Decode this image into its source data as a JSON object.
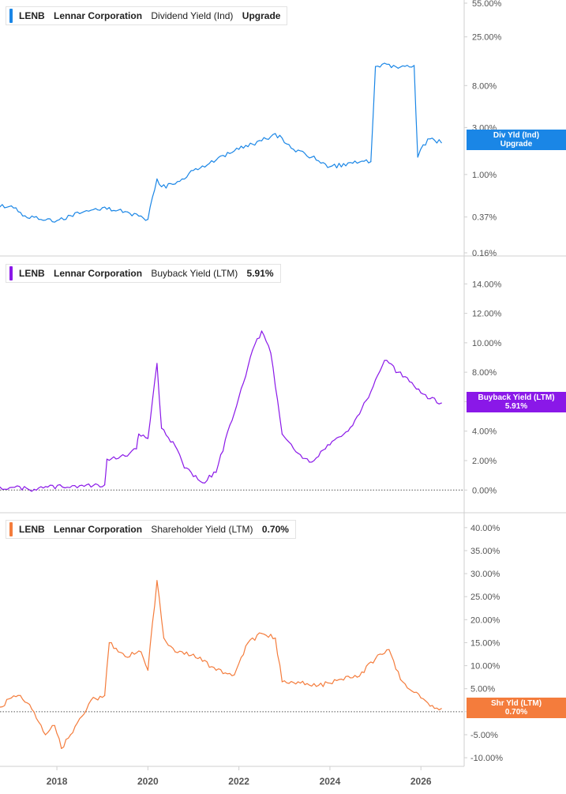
{
  "panels": [
    {
      "ticker": "LENB",
      "company": "Lennar Corporation",
      "metric": "Dividend Yield (Ind)",
      "value": "Upgrade",
      "color": "#1a86e6",
      "tag_line1": "Div Yld (Ind)",
      "tag_line2": "Upgrade"
    },
    {
      "ticker": "LENB",
      "company": "Lennar Corporation",
      "metric": "Buyback Yield (LTM)",
      "value": "5.91%",
      "color": "#8a18e8",
      "tag_line1": "Buyback Yield (LTM)",
      "tag_line2": "5.91%"
    },
    {
      "ticker": "LENB",
      "company": "Lennar Corporation",
      "metric": "Shareholder Yield (LTM)",
      "value": "0.70%",
      "color": "#f47c3c",
      "tag_line1": "Shr Yld (LTM)",
      "tag_line2": "0.70%"
    }
  ],
  "chart_data": [
    {
      "type": "line",
      "title": "LENB Lennar Corporation Dividend Yield (Ind)",
      "scale": "log",
      "ylim": [
        0.16,
        55
      ],
      "yticks": [
        "55.00%",
        "25.00%",
        "8.00%",
        "3.00%",
        "1.00%",
        "0.37%",
        "0.16%"
      ],
      "ytick_values": [
        55,
        25,
        8,
        3,
        1,
        0.37,
        0.16
      ],
      "x": [
        2016.75,
        2017.0,
        2017.3,
        2017.6,
        2018.0,
        2018.5,
        2019.0,
        2019.5,
        2020.0,
        2020.2,
        2020.3,
        2020.6,
        2021.0,
        2021.5,
        2022.0,
        2022.5,
        2022.8,
        2023.2,
        2023.6,
        2024.0,
        2024.5,
        2024.9,
        2025.0,
        2025.2,
        2025.5,
        2025.85,
        2025.93,
        2026.05,
        2026.2,
        2026.45
      ],
      "y": [
        0.47,
        0.48,
        0.38,
        0.35,
        0.34,
        0.4,
        0.46,
        0.42,
        0.35,
        0.9,
        0.75,
        0.8,
        1.1,
        1.4,
        1.8,
        2.2,
        2.6,
        1.8,
        1.5,
        1.2,
        1.3,
        1.35,
        12.5,
        13.5,
        12.0,
        12.8,
        1.5,
        2.0,
        2.3,
        2.1
      ],
      "grid": false
    },
    {
      "type": "line",
      "title": "LENB Lennar Corporation Buyback Yield (LTM)",
      "ylim": [
        -0.2,
        14.5
      ],
      "yticks": [
        "14.00%",
        "12.00%",
        "10.00%",
        "8.00%",
        "6.00%",
        "4.00%",
        "2.00%",
        "0.00%"
      ],
      "ytick_values": [
        14,
        12,
        10,
        8,
        6,
        4,
        2,
        0
      ],
      "x": [
        2016.75,
        2017.5,
        2017.8,
        2018.5,
        2019.05,
        2019.1,
        2019.5,
        2019.75,
        2019.8,
        2020.0,
        2020.2,
        2020.3,
        2020.6,
        2020.8,
        2021.2,
        2021.5,
        2021.8,
        2022.0,
        2022.3,
        2022.5,
        2022.7,
        2022.95,
        2023.3,
        2023.6,
        2023.9,
        2024.4,
        2024.8,
        2025.2,
        2025.5,
        2025.8,
        2026.0,
        2026.2,
        2026.45
      ],
      "y": [
        0.2,
        0.05,
        0.2,
        0.3,
        0.35,
        2.1,
        2.3,
        2.8,
        3.8,
        3.5,
        8.6,
        4.2,
        3.0,
        1.5,
        0.5,
        1.2,
        4.4,
        6.3,
        9.5,
        10.8,
        9.3,
        3.8,
        2.5,
        1.9,
        2.8,
        4.0,
        6.1,
        8.8,
        8.0,
        7.3,
        6.6,
        6.2,
        5.91
      ],
      "grid": false
    },
    {
      "type": "line",
      "title": "LENB Lennar Corporation Shareholder Yield (LTM)",
      "ylim": [
        -10.5,
        41
      ],
      "yticks": [
        "40.00%",
        "35.00%",
        "30.00%",
        "25.00%",
        "20.00%",
        "15.00%",
        "10.00%",
        "5.00%",
        "0.00%",
        "-5.00%",
        "-10.00%"
      ],
      "ytick_values": [
        40,
        35,
        30,
        25,
        20,
        15,
        10,
        5,
        0,
        -5,
        -10
      ],
      "x": [
        2016.75,
        2017.0,
        2017.2,
        2017.45,
        2017.75,
        2017.95,
        2018.1,
        2018.3,
        2018.55,
        2018.75,
        2019.05,
        2019.15,
        2019.5,
        2019.85,
        2020.0,
        2020.2,
        2020.35,
        2020.6,
        2021.0,
        2021.5,
        2021.9,
        2022.2,
        2022.5,
        2022.8,
        2022.95,
        2023.3,
        2023.7,
        2024.2,
        2024.6,
        2025.0,
        2025.3,
        2025.55,
        2025.8,
        2026.0,
        2026.2,
        2026.45
      ],
      "y": [
        1.0,
        3.0,
        3.5,
        0.5,
        -5.0,
        -3.0,
        -8.0,
        -5.0,
        -1.0,
        2.5,
        3.5,
        15.0,
        12.0,
        13.0,
        9.0,
        28.5,
        16.0,
        13.0,
        12.5,
        9.0,
        8.0,
        15.0,
        17.0,
        16.0,
        6.5,
        6.5,
        5.5,
        7.0,
        7.5,
        11.5,
        13.5,
        7.0,
        4.5,
        3.0,
        1.2,
        0.7
      ],
      "grid": false
    }
  ],
  "x_axis": {
    "ticks": [
      "2018",
      "2020",
      "2022",
      "2024",
      "2026"
    ],
    "tick_values": [
      2018,
      2020,
      2022,
      2024,
      2026
    ],
    "xlim": [
      2016.75,
      2026.95
    ]
  }
}
